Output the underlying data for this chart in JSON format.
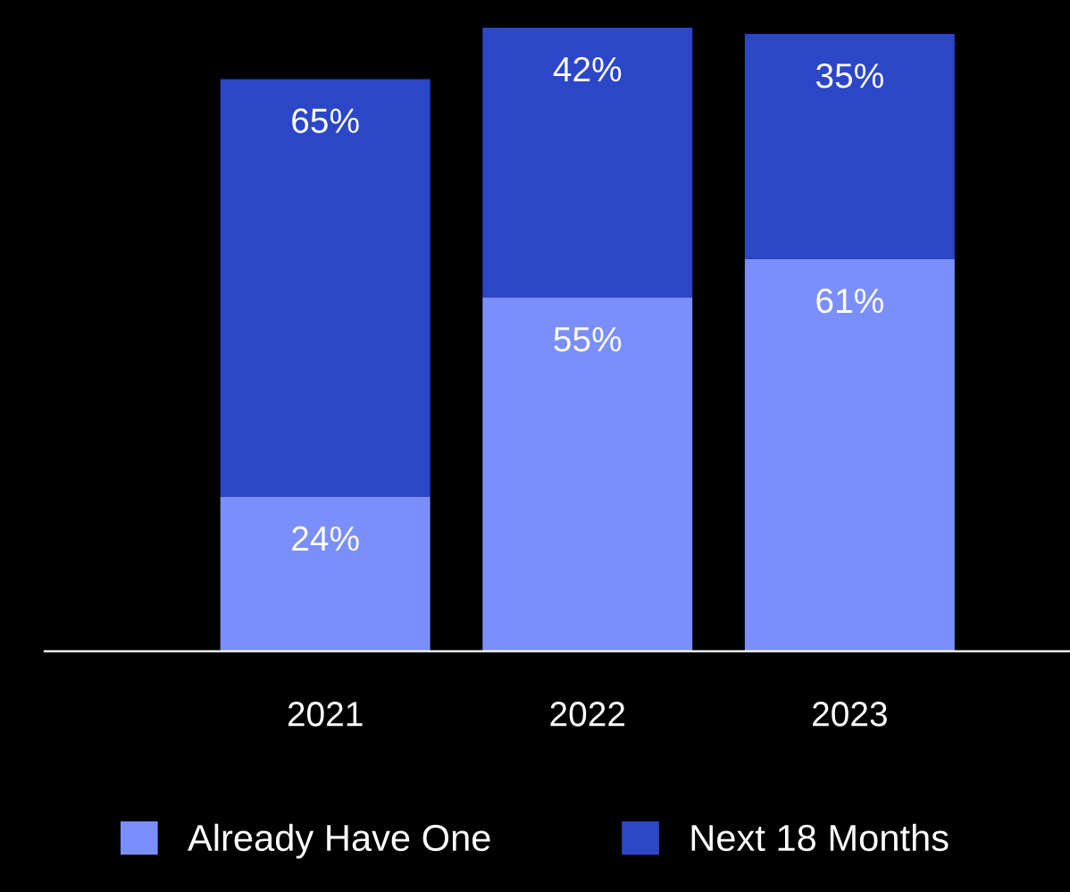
{
  "chart_data": {
    "type": "bar",
    "stacked": true,
    "categories": [
      "2021",
      "2022",
      "2023"
    ],
    "series": [
      {
        "name": "Already Have One",
        "color": "#7b8ffc",
        "values": [
          24,
          55,
          61
        ],
        "value_labels": [
          "24%",
          "55%",
          "61%"
        ]
      },
      {
        "name": "Next 18 Months",
        "color": "#2c46c8",
        "values": [
          65,
          42,
          35
        ],
        "value_labels": [
          "65%",
          "42%",
          "35%"
        ]
      }
    ],
    "tick_labels": "x",
    "grid": false,
    "legend": "bottom"
  }
}
